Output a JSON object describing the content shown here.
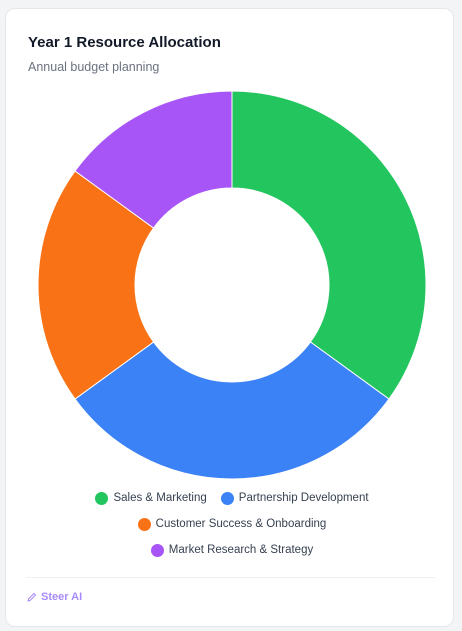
{
  "chart_data": {
    "type": "doughnut",
    "title": "Year 1 Resource Allocation",
    "subtitle": "Annual budget planning",
    "categories": [
      "Sales & Marketing",
      "Partnership Development",
      "Customer Success & Onboarding",
      "Market Research & Strategy"
    ],
    "values": [
      35,
      30,
      20,
      15
    ],
    "colors": [
      "#22c55e",
      "#3b82f6",
      "#f97316",
      "#a855f7"
    ]
  },
  "footer": {
    "label": "Steer AI"
  }
}
